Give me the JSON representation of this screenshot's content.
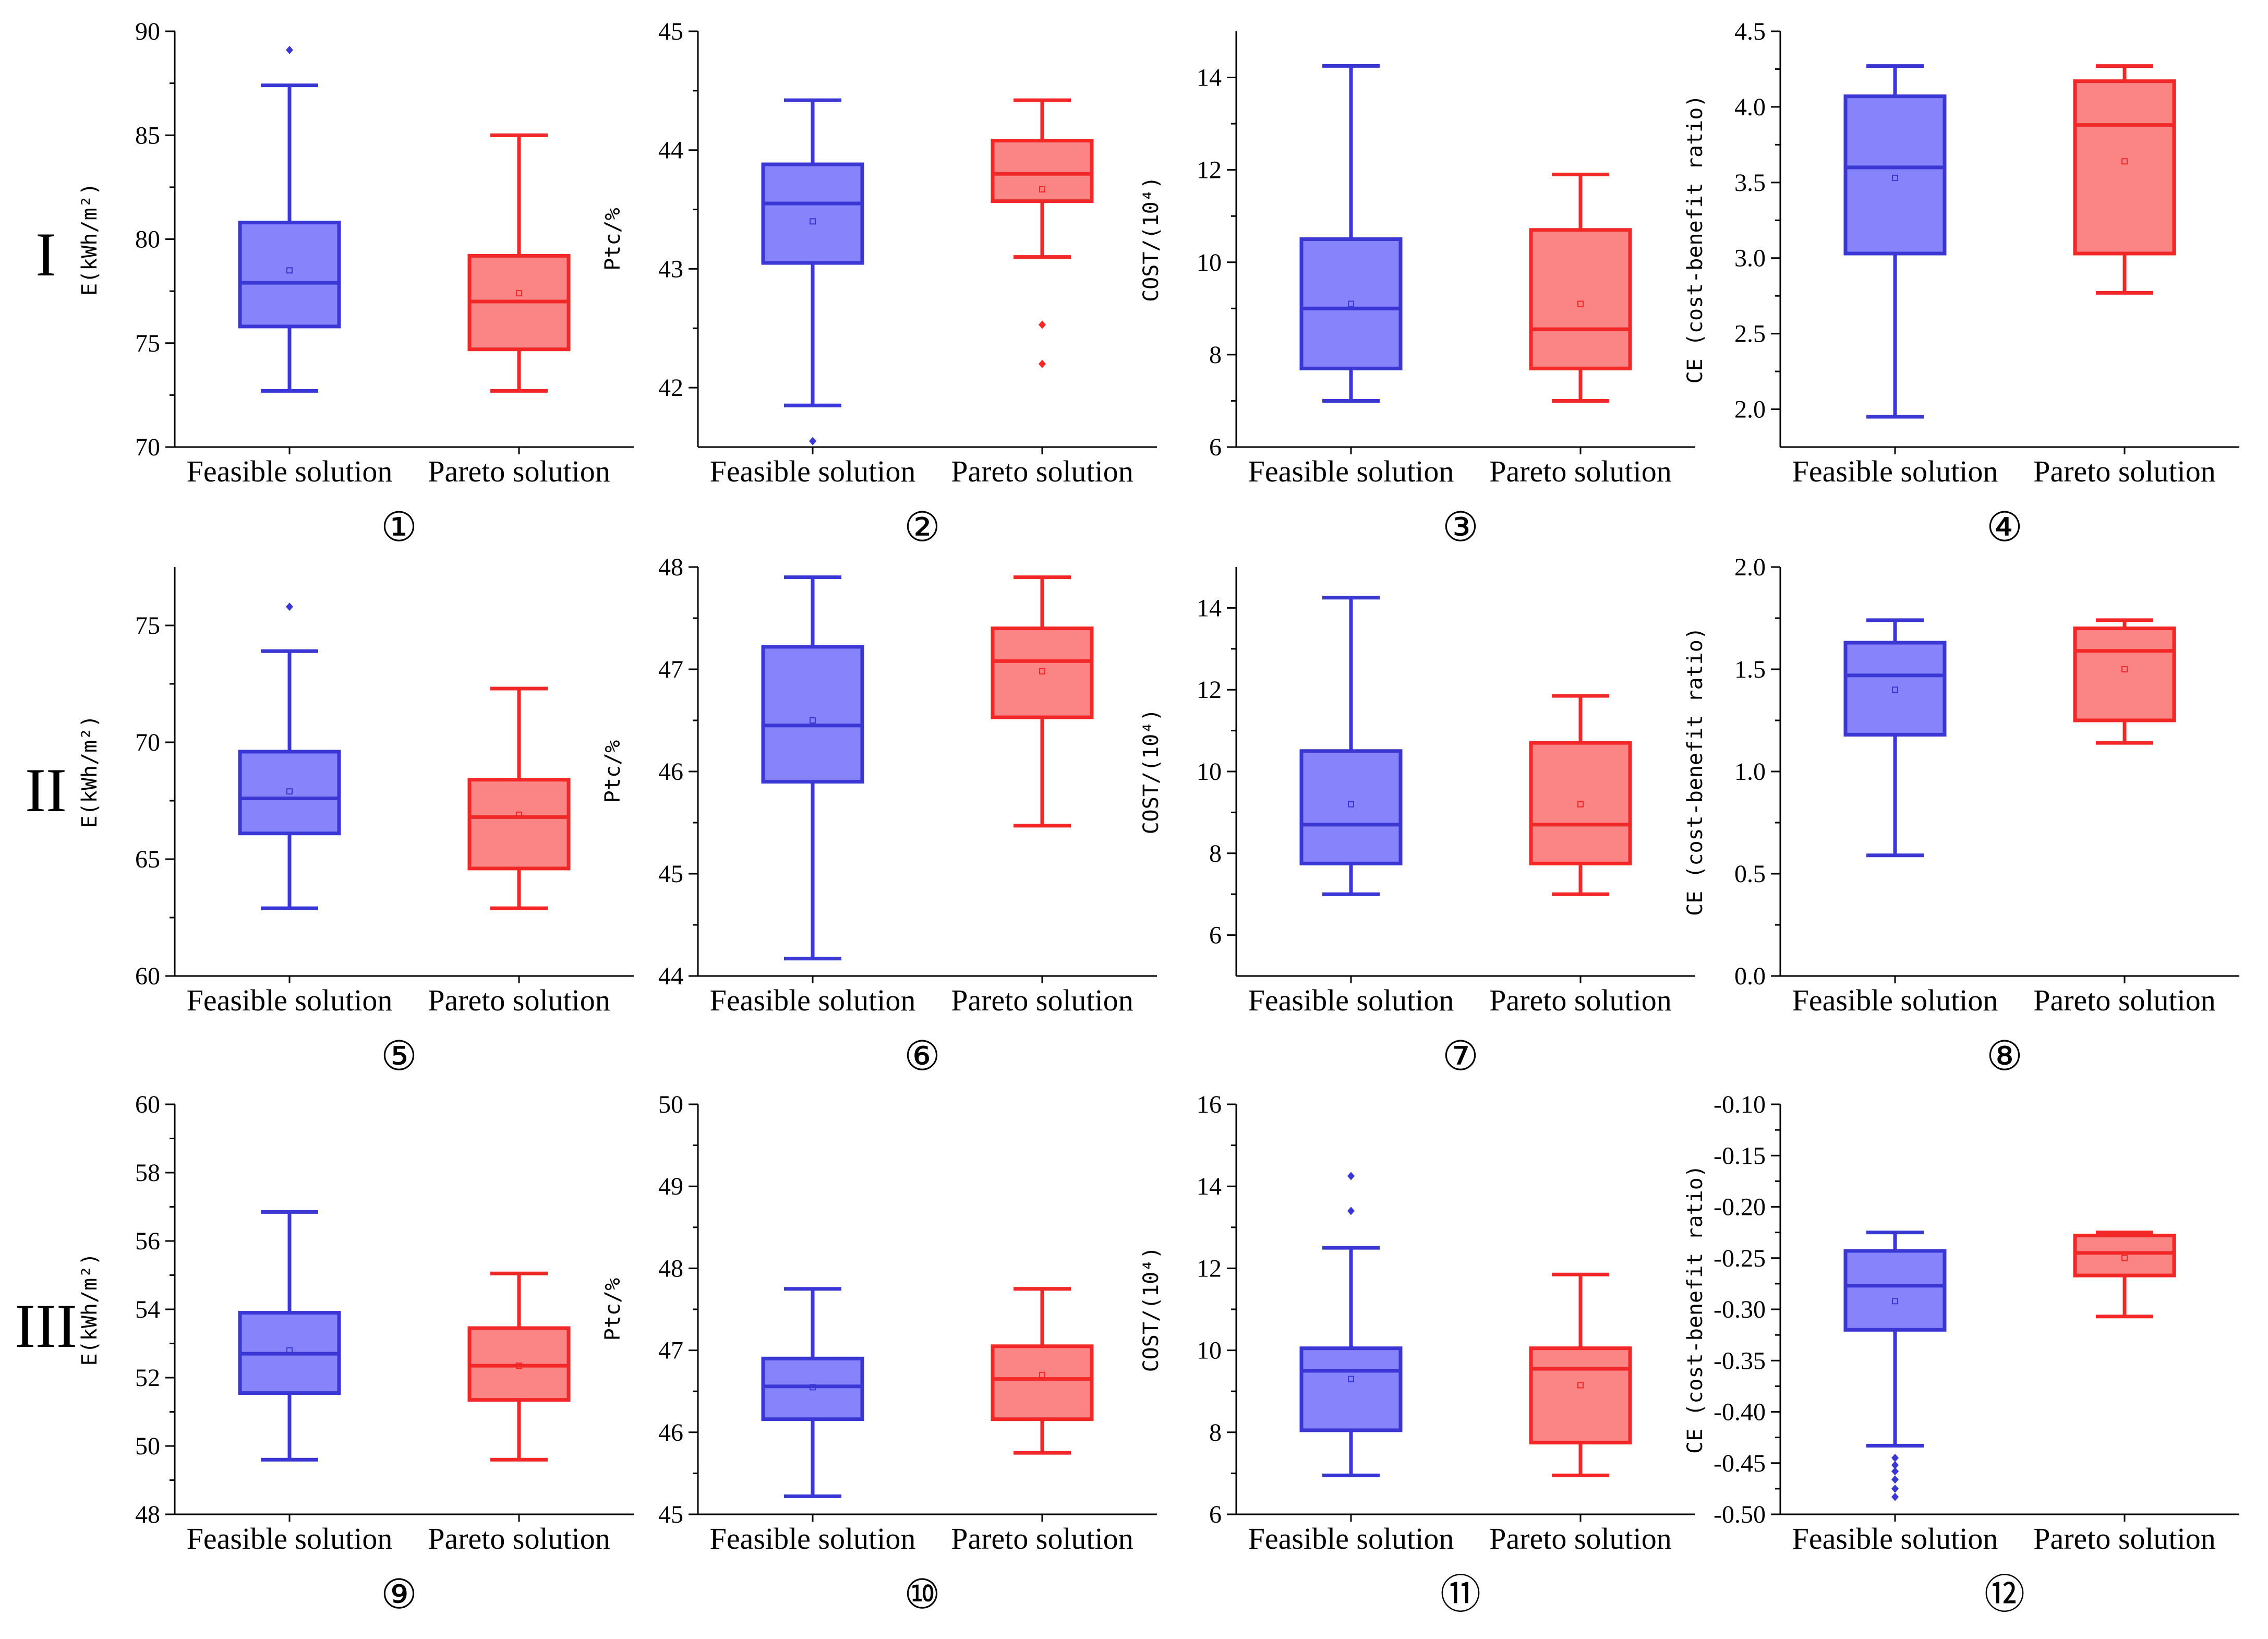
{
  "figure": {
    "row_labels": [
      "I",
      "II",
      "III"
    ],
    "colors": {
      "feasible_stroke": "#3a37d4",
      "feasible_fill": "#8783fb",
      "pareto_stroke": "#f22828",
      "pareto_fill": "#fb8585",
      "axis": "#000000"
    }
  },
  "chart_data": [
    {
      "id": 1,
      "label": "①",
      "row": "I",
      "type": "box",
      "ylabel": "E(kWh/m²)",
      "ylim": [
        70,
        90
      ],
      "yticks": [
        70,
        75,
        80,
        85,
        90
      ],
      "categories": [
        "Feasible solution",
        "Pareto solution"
      ],
      "series": [
        {
          "name": "Feasible solution",
          "whisker_low": 72.7,
          "q1": 75.8,
          "median": 77.9,
          "q3": 80.8,
          "whisker_high": 87.4,
          "mean": 78.5,
          "outliers": [
            89.1
          ]
        },
        {
          "name": "Pareto solution",
          "whisker_low": 72.7,
          "q1": 74.7,
          "median": 77.0,
          "q3": 79.2,
          "whisker_high": 85.0,
          "mean": 77.4,
          "outliers": []
        }
      ]
    },
    {
      "id": 2,
      "label": "②",
      "row": "I",
      "type": "box",
      "ylabel": "Ptc/%",
      "ylim": [
        41.5,
        45
      ],
      "yticks": [
        42,
        43,
        44,
        45
      ],
      "categories": [
        "Feasible solution",
        "Pareto solution"
      ],
      "series": [
        {
          "name": "Feasible solution",
          "whisker_low": 41.85,
          "q1": 43.05,
          "median": 43.55,
          "q3": 43.88,
          "whisker_high": 44.42,
          "mean": 43.4,
          "outliers": [
            41.55
          ]
        },
        {
          "name": "Pareto solution",
          "whisker_low": 43.1,
          "q1": 43.57,
          "median": 43.8,
          "q3": 44.08,
          "whisker_high": 44.42,
          "mean": 43.67,
          "outliers": [
            42.53,
            42.2
          ]
        }
      ]
    },
    {
      "id": 3,
      "label": "③",
      "row": "I",
      "type": "box",
      "ylabel": "COST/(10⁴)",
      "ylim": [
        6,
        15
      ],
      "yticks": [
        6,
        8,
        10,
        12,
        14
      ],
      "categories": [
        "Feasible solution",
        "Pareto solution"
      ],
      "series": [
        {
          "name": "Feasible solution",
          "whisker_low": 7.0,
          "q1": 7.7,
          "median": 9.0,
          "q3": 10.5,
          "whisker_high": 14.25,
          "mean": 9.1,
          "outliers": []
        },
        {
          "name": "Pareto solution",
          "whisker_low": 7.0,
          "q1": 7.7,
          "median": 8.55,
          "q3": 10.7,
          "whisker_high": 11.9,
          "mean": 9.1,
          "outliers": []
        }
      ]
    },
    {
      "id": 4,
      "label": "④",
      "row": "I",
      "type": "box",
      "ylabel": "CE (cost-benefit ratio)",
      "ylim": [
        1.75,
        4.5
      ],
      "yticks": [
        2.0,
        2.5,
        3.0,
        3.5,
        4.0,
        4.5
      ],
      "categories": [
        "Feasible solution",
        "Pareto solution"
      ],
      "series": [
        {
          "name": "Feasible solution",
          "whisker_low": 1.95,
          "q1": 3.03,
          "median": 3.6,
          "q3": 4.07,
          "whisker_high": 4.27,
          "mean": 3.53,
          "outliers": []
        },
        {
          "name": "Pareto solution",
          "whisker_low": 2.77,
          "q1": 3.03,
          "median": 3.88,
          "q3": 4.17,
          "whisker_high": 4.27,
          "mean": 3.64,
          "outliers": []
        }
      ]
    },
    {
      "id": 5,
      "label": "⑤",
      "row": "II",
      "type": "box",
      "ylabel": "E(kWh/m²)",
      "ylim": [
        60,
        77.5
      ],
      "yticks": [
        60,
        65,
        70,
        75
      ],
      "categories": [
        "Feasible solution",
        "Pareto solution"
      ],
      "series": [
        {
          "name": "Feasible solution",
          "whisker_low": 62.9,
          "q1": 66.1,
          "median": 67.6,
          "q3": 69.6,
          "whisker_high": 73.9,
          "mean": 67.9,
          "outliers": [
            75.8
          ]
        },
        {
          "name": "Pareto solution",
          "whisker_low": 62.9,
          "q1": 64.6,
          "median": 66.8,
          "q3": 68.4,
          "whisker_high": 72.3,
          "mean": 66.9,
          "outliers": []
        }
      ]
    },
    {
      "id": 6,
      "label": "⑥",
      "row": "II",
      "type": "box",
      "ylabel": "Ptc/%",
      "ylim": [
        44,
        48
      ],
      "yticks": [
        44,
        45,
        46,
        47,
        48
      ],
      "categories": [
        "Feasible solution",
        "Pareto solution"
      ],
      "series": [
        {
          "name": "Feasible solution",
          "whisker_low": 44.17,
          "q1": 45.9,
          "median": 46.45,
          "q3": 47.22,
          "whisker_high": 47.9,
          "mean": 46.5,
          "outliers": []
        },
        {
          "name": "Pareto solution",
          "whisker_low": 45.47,
          "q1": 46.53,
          "median": 47.08,
          "q3": 47.4,
          "whisker_high": 47.9,
          "mean": 46.98,
          "outliers": []
        }
      ]
    },
    {
      "id": 7,
      "label": "⑦",
      "row": "II",
      "type": "box",
      "ylabel": "COST/(10⁴)",
      "ylim": [
        5,
        15
      ],
      "yticks": [
        6,
        8,
        10,
        12,
        14
      ],
      "categories": [
        "Feasible solution",
        "Pareto solution"
      ],
      "series": [
        {
          "name": "Feasible solution",
          "whisker_low": 7.0,
          "q1": 7.75,
          "median": 8.7,
          "q3": 10.5,
          "whisker_high": 14.25,
          "mean": 9.2,
          "outliers": []
        },
        {
          "name": "Pareto solution",
          "whisker_low": 7.0,
          "q1": 7.75,
          "median": 8.7,
          "q3": 10.7,
          "whisker_high": 11.85,
          "mean": 9.2,
          "outliers": []
        }
      ]
    },
    {
      "id": 8,
      "label": "⑧",
      "row": "II",
      "type": "box",
      "ylabel": "CE (cost-benefit ratio)",
      "ylim": [
        0,
        2.0
      ],
      "yticks": [
        0.0,
        0.5,
        1.0,
        1.5,
        2.0
      ],
      "categories": [
        "Feasible solution",
        "Pareto solution"
      ],
      "series": [
        {
          "name": "Feasible solution",
          "whisker_low": 0.59,
          "q1": 1.18,
          "median": 1.47,
          "q3": 1.63,
          "whisker_high": 1.74,
          "mean": 1.4,
          "outliers": []
        },
        {
          "name": "Pareto solution",
          "whisker_low": 1.14,
          "q1": 1.25,
          "median": 1.59,
          "q3": 1.7,
          "whisker_high": 1.74,
          "mean": 1.5,
          "outliers": []
        }
      ]
    },
    {
      "id": 9,
      "label": "⑨",
      "row": "III",
      "type": "box",
      "ylabel": "E(kWh/m²)",
      "ylim": [
        48,
        60
      ],
      "yticks": [
        48,
        50,
        52,
        54,
        56,
        58,
        60
      ],
      "categories": [
        "Feasible solution",
        "Pareto solution"
      ],
      "series": [
        {
          "name": "Feasible solution",
          "whisker_low": 49.6,
          "q1": 51.55,
          "median": 52.7,
          "q3": 53.9,
          "whisker_high": 56.85,
          "mean": 52.8,
          "outliers": []
        },
        {
          "name": "Pareto solution",
          "whisker_low": 49.6,
          "q1": 51.35,
          "median": 52.35,
          "q3": 53.45,
          "whisker_high": 55.05,
          "mean": 52.35,
          "outliers": []
        }
      ]
    },
    {
      "id": 10,
      "label": "⑩",
      "row": "III",
      "type": "box",
      "ylabel": "Ptc/%",
      "ylim": [
        45,
        50
      ],
      "yticks": [
        45,
        46,
        47,
        48,
        49,
        50
      ],
      "categories": [
        "Feasible solution",
        "Pareto solution"
      ],
      "series": [
        {
          "name": "Feasible solution",
          "whisker_low": 45.22,
          "q1": 46.16,
          "median": 46.56,
          "q3": 46.9,
          "whisker_high": 47.75,
          "mean": 46.55,
          "outliers": []
        },
        {
          "name": "Pareto solution",
          "whisker_low": 45.75,
          "q1": 46.16,
          "median": 46.65,
          "q3": 47.05,
          "whisker_high": 47.75,
          "mean": 46.7,
          "outliers": []
        }
      ]
    },
    {
      "id": 11,
      "label": "⑪",
      "row": "III",
      "type": "box",
      "ylabel": "COST/(10⁴)",
      "ylim": [
        6,
        16
      ],
      "yticks": [
        6,
        8,
        10,
        12,
        14,
        16
      ],
      "categories": [
        "Feasible solution",
        "Pareto solution"
      ],
      "series": [
        {
          "name": "Feasible solution",
          "whisker_low": 6.95,
          "q1": 8.05,
          "median": 9.5,
          "q3": 10.05,
          "whisker_high": 12.5,
          "mean": 9.3,
          "outliers": [
            13.4,
            14.25
          ]
        },
        {
          "name": "Pareto solution",
          "whisker_low": 6.95,
          "q1": 7.75,
          "median": 9.55,
          "q3": 10.05,
          "whisker_high": 11.85,
          "mean": 9.15,
          "outliers": []
        }
      ]
    },
    {
      "id": 12,
      "label": "⑫",
      "row": "III",
      "type": "box",
      "ylabel": "CE (cost-benefit ratio)",
      "ylim": [
        -0.5,
        -0.1
      ],
      "yticks": [
        -0.5,
        -0.45,
        -0.4,
        -0.35,
        -0.3,
        -0.25,
        -0.2,
        -0.15,
        -0.1
      ],
      "categories": [
        "Feasible solution",
        "Pareto solution"
      ],
      "series": [
        {
          "name": "Feasible solution",
          "whisker_low": -0.433,
          "q1": -0.32,
          "median": -0.277,
          "q3": -0.243,
          "whisker_high": -0.225,
          "mean": -0.292,
          "outliers": [
            -0.445,
            -0.452,
            -0.458,
            -0.466,
            -0.475,
            -0.483
          ]
        },
        {
          "name": "Pareto solution",
          "whisker_low": -0.307,
          "q1": -0.267,
          "median": -0.245,
          "q3": -0.228,
          "whisker_high": -0.225,
          "mean": -0.25,
          "outliers": []
        }
      ]
    }
  ]
}
